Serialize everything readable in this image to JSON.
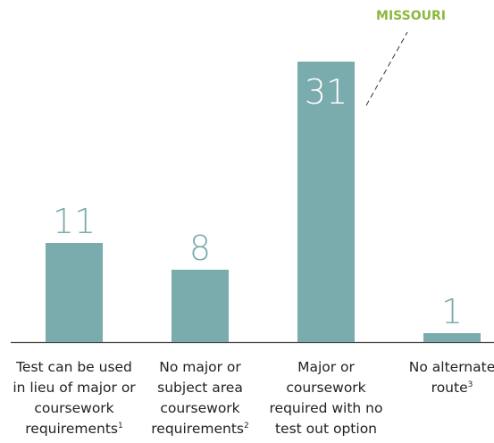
{
  "chart_data": {
    "type": "bar",
    "categories": [
      "Test can be used in lieu of major or coursework requirements",
      "No major or subject area coursework requirements",
      "Major or coursework required with no test out option",
      "No alternate route"
    ],
    "category_footnotes": [
      "1",
      "2",
      null,
      "3"
    ],
    "values": [
      11,
      8,
      31,
      1
    ],
    "color": "#7aabad",
    "annotation": {
      "text": "MISSOURI",
      "category_index": 2,
      "color": "#8db73f"
    }
  }
}
